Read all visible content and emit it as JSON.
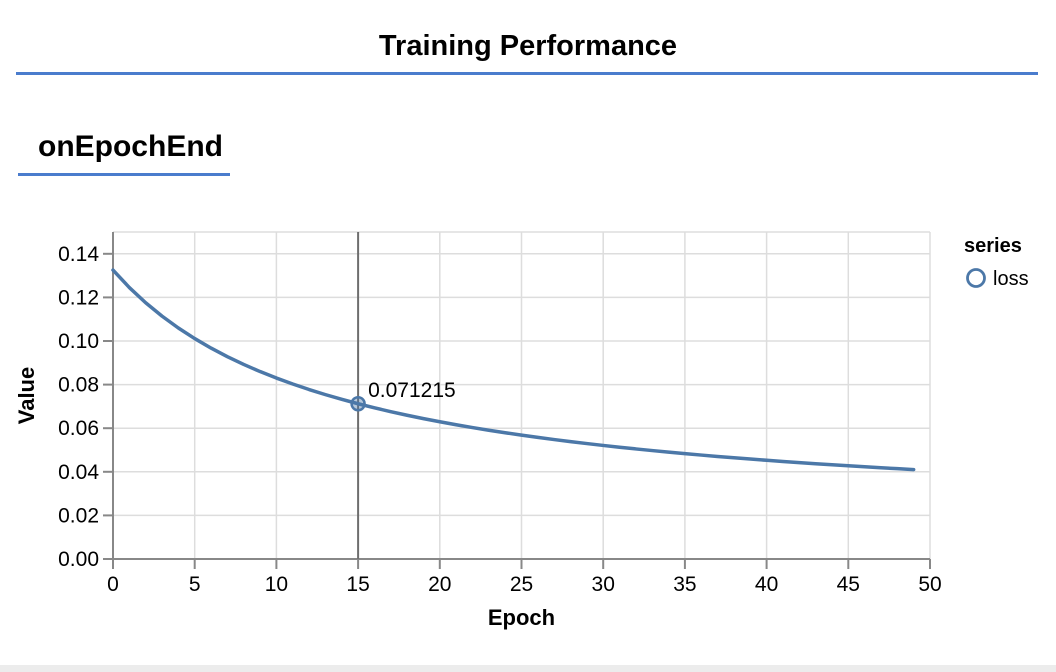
{
  "page": {
    "title": "Training Performance",
    "section_heading": "onEpochEnd"
  },
  "colors": {
    "heading_rule": "#4a7ccd",
    "series_line": "#4c78a8",
    "grid_line": "#dddddd",
    "axis_line": "#888888",
    "hover_rule": "#6e6e6e",
    "text": "#000000",
    "bottom_strip": "#ececec"
  },
  "chart_data": {
    "type": "line",
    "title": "",
    "xlabel": "Epoch",
    "ylabel": "Value",
    "xlim": [
      0,
      50
    ],
    "ylim": [
      0,
      0.15
    ],
    "grid": true,
    "x_ticks": [
      0,
      5,
      10,
      15,
      20,
      25,
      30,
      35,
      40,
      45,
      50
    ],
    "y_ticks": [
      0,
      0.02,
      0.04,
      0.06,
      0.08,
      0.1,
      0.12,
      0.14
    ],
    "y_tick_labels": [
      "0.00",
      "0.02",
      "0.04",
      "0.06",
      "0.08",
      "0.10",
      "0.12",
      "0.14"
    ],
    "legend": {
      "title": "series",
      "position": "right",
      "entries": [
        {
          "label": "loss",
          "marker": "open-circle"
        }
      ]
    },
    "series": [
      {
        "name": "loss",
        "x": [
          0,
          1,
          2,
          3,
          4,
          5,
          6,
          7,
          8,
          9,
          10,
          11,
          12,
          13,
          14,
          15,
          16,
          17,
          18,
          19,
          20,
          21,
          22,
          23,
          24,
          25,
          26,
          27,
          28,
          29,
          30,
          31,
          32,
          33,
          34,
          35,
          36,
          37,
          38,
          39,
          40,
          41,
          42,
          43,
          44,
          45,
          46,
          47,
          48,
          49
        ],
        "values": [
          0.132529,
          0.124525,
          0.117548,
          0.11141,
          0.105969,
          0.101113,
          0.096752,
          0.092815,
          0.089242,
          0.085985,
          0.083004,
          0.080265,
          0.07774,
          0.075405,
          0.073239,
          0.071215,
          0.069345,
          0.06759,
          0.065945,
          0.064401,
          0.062949,
          0.061581,
          0.06029,
          0.059069,
          0.057913,
          0.056817,
          0.055777,
          0.054787,
          0.053846,
          0.052948,
          0.052092,
          0.051274,
          0.050491,
          0.049743,
          0.049026,
          0.048338,
          0.047678,
          0.047044,
          0.046435,
          0.045849,
          0.045285,
          0.044741,
          0.044217,
          0.043712,
          0.043224,
          0.042752,
          0.042297,
          0.041857,
          0.041431,
          0.041018
        ]
      }
    ],
    "hover_point": {
      "epoch": 15,
      "value": 0.071215,
      "label": "0.071215"
    }
  }
}
